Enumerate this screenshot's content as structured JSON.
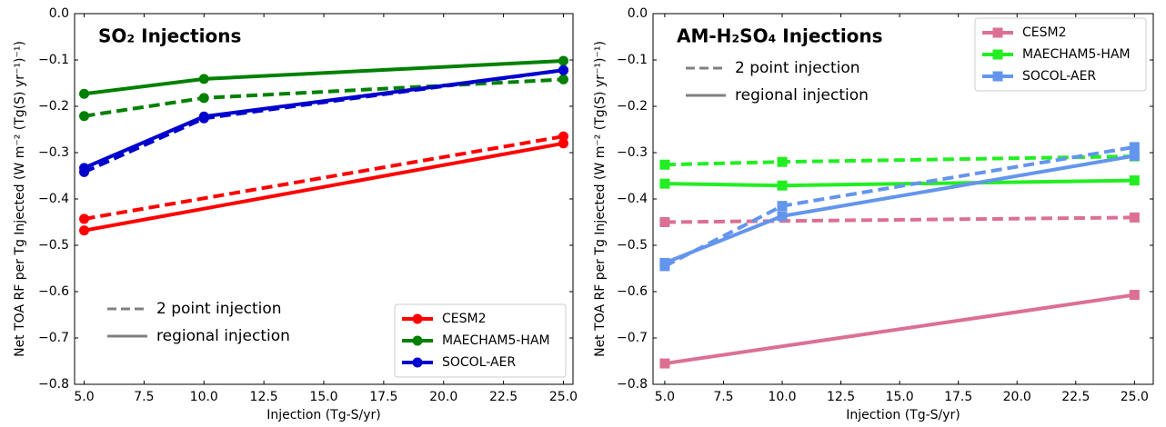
{
  "chart_data": [
    {
      "type": "line",
      "title": "SO₂ Injections",
      "xlabel": "Injection (Tg-S/yr)",
      "ylabel": "Net TOA RF per Tg Injected (W m⁻² (Tg(S) yr⁻¹)⁻¹)",
      "marker": "circle",
      "legend_loc": "lower right",
      "style_legend_loc": "lower left",
      "xlim": [
        4.6,
        25.4
      ],
      "ylim": [
        -0.8,
        0
      ],
      "xticks": [
        {
          "value": 5,
          "label": "5.0"
        },
        {
          "value": 7.5,
          "label": "7.5"
        },
        {
          "value": 10,
          "label": "10.0"
        },
        {
          "value": 12.5,
          "label": "12.5"
        },
        {
          "value": 15,
          "label": "15.0"
        },
        {
          "value": 17.5,
          "label": "17.5"
        },
        {
          "value": 20,
          "label": "20.0"
        },
        {
          "value": 22.5,
          "label": "22.5"
        },
        {
          "value": 25,
          "label": "25.0"
        }
      ],
      "yticks": [
        {
          "value": 0,
          "label": "0.0"
        },
        {
          "value": -0.1,
          "label": "−0.1"
        },
        {
          "value": -0.2,
          "label": "−0.2"
        },
        {
          "value": -0.3,
          "label": "−0.3"
        },
        {
          "value": -0.4,
          "label": "−0.4"
        },
        {
          "value": -0.5,
          "label": "−0.5"
        },
        {
          "value": -0.6,
          "label": "−0.6"
        },
        {
          "value": -0.7,
          "label": "−0.7"
        },
        {
          "value": -0.8,
          "label": "−0.8"
        }
      ],
      "styles": [
        {
          "name": "2 point injection",
          "dashed": true
        },
        {
          "name": "regional injection",
          "dashed": false
        }
      ],
      "series": [
        {
          "name": "CESM2",
          "color": "#ff0000",
          "x": [
            5,
            25
          ],
          "dashed_values": [
            -0.443,
            -0.265
          ],
          "values": [
            -0.468,
            -0.28
          ]
        },
        {
          "name": "MAECHAM5-HAM",
          "color": "#008000",
          "x": [
            5,
            10,
            25
          ],
          "dashed_values": [
            -0.221,
            -0.182,
            -0.142
          ],
          "values": [
            -0.173,
            -0.141,
            -0.102
          ]
        },
        {
          "name": "SOCOL-AER",
          "color": "#0000cd",
          "x": [
            5,
            10,
            25
          ],
          "dashed_values": [
            -0.342,
            -0.226,
            -0.122
          ],
          "values": [
            -0.333,
            -0.222,
            -0.122
          ]
        }
      ]
    },
    {
      "type": "line",
      "title": "AM-H₂SO₄ Injections",
      "xlabel": "Injection (Tg-S/yr)",
      "ylabel": "Net TOA RF per Tg Injected (W m⁻² (Tg(S) yr⁻¹)⁻¹)",
      "marker": "square",
      "legend_loc": "upper right",
      "style_legend_loc": "upper left",
      "xlim": [
        4.5,
        25.8
      ],
      "ylim": [
        -0.8,
        0
      ],
      "xticks": [
        {
          "value": 5,
          "label": "5.0"
        },
        {
          "value": 7.5,
          "label": "7.5"
        },
        {
          "value": 10,
          "label": "10.0"
        },
        {
          "value": 12.5,
          "label": "12.5"
        },
        {
          "value": 15,
          "label": "15.0"
        },
        {
          "value": 17.5,
          "label": "17.5"
        },
        {
          "value": 20,
          "label": "20.0"
        },
        {
          "value": 22.5,
          "label": "22.5"
        },
        {
          "value": 25,
          "label": "25.0"
        }
      ],
      "yticks": [
        {
          "value": 0,
          "label": "0.0"
        },
        {
          "value": -0.1,
          "label": "−0.1"
        },
        {
          "value": -0.2,
          "label": "−0.2"
        },
        {
          "value": -0.3,
          "label": "−0.3"
        },
        {
          "value": -0.4,
          "label": "−0.4"
        },
        {
          "value": -0.5,
          "label": "−0.5"
        },
        {
          "value": -0.6,
          "label": "−0.6"
        },
        {
          "value": -0.7,
          "label": "−0.7"
        },
        {
          "value": -0.8,
          "label": "−0.8"
        }
      ],
      "styles": [
        {
          "name": "2 point injection",
          "dashed": true
        },
        {
          "name": "regional injection",
          "dashed": false
        }
      ],
      "series": [
        {
          "name": "CESM2",
          "color": "#db7093",
          "x": [
            5,
            25
          ],
          "dashed_values": [
            -0.45,
            -0.44
          ],
          "values": [
            -0.755,
            -0.607
          ]
        },
        {
          "name": "MAECHAM5-HAM",
          "color": "#22ee22",
          "x": [
            5,
            10,
            25
          ],
          "dashed_values": [
            -0.326,
            -0.32,
            -0.308
          ],
          "values": [
            -0.367,
            -0.371,
            -0.36
          ]
        },
        {
          "name": "SOCOL-AER",
          "color": "#6495ed",
          "x": [
            5,
            10,
            25
          ],
          "dashed_values": [
            -0.545,
            -0.415,
            -0.288
          ],
          "values": [
            -0.538,
            -0.437,
            -0.307
          ]
        }
      ]
    }
  ]
}
